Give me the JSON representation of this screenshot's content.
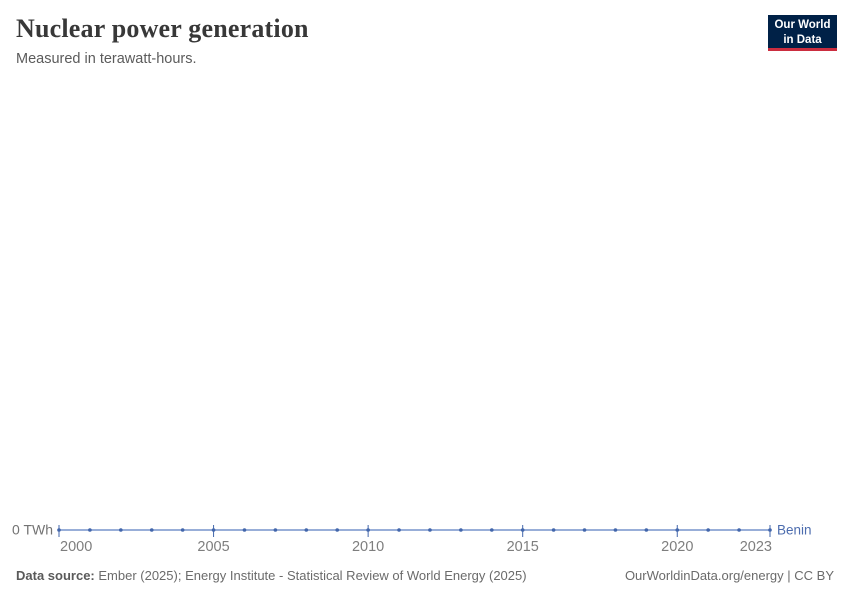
{
  "header": {
    "title": "Nuclear power generation",
    "subtitle": "Measured in terawatt-hours."
  },
  "logo": {
    "line1": "Our World",
    "line2": "in Data",
    "bg_color": "#002147",
    "accent_color": "#cb2d3f"
  },
  "chart_data": {
    "type": "line",
    "title": "Nuclear power generation",
    "subtitle": "Measured in terawatt-hours.",
    "entity": "Benin",
    "unit": "TWh",
    "x": [
      2000,
      2001,
      2002,
      2003,
      2004,
      2005,
      2006,
      2007,
      2008,
      2009,
      2010,
      2011,
      2012,
      2013,
      2014,
      2015,
      2016,
      2017,
      2018,
      2019,
      2020,
      2021,
      2022,
      2023
    ],
    "series": [
      {
        "name": "Benin",
        "values": [
          0,
          0,
          0,
          0,
          0,
          0,
          0,
          0,
          0,
          0,
          0,
          0,
          0,
          0,
          0,
          0,
          0,
          0,
          0,
          0,
          0,
          0,
          0,
          0
        ]
      }
    ],
    "x_tick_labels": [
      2000,
      2005,
      2010,
      2015,
      2020,
      2023
    ],
    "y_axis_tick": "0 TWh",
    "ylim": [
      0,
      0
    ],
    "grid": false,
    "legend_position": "end-of-line-label",
    "colors": {
      "line": "#8aa2d2",
      "marker": "#4266ab",
      "entity_label": "#4c6cae"
    }
  },
  "footer": {
    "source_label": "Data source:",
    "source_text": " Ember (2025); Energy Institute - Statistical Review of World Energy (2025)",
    "right_text": "OurWorldinData.org/energy | CC BY"
  }
}
